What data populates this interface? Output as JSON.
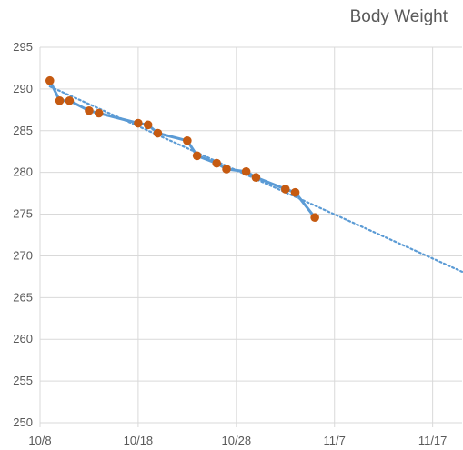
{
  "chart_data": {
    "type": "line",
    "title": "Body Weight",
    "xlabel": "",
    "ylabel": "",
    "x_tick_labels": [
      "10/8",
      "10/18",
      "10/28",
      "11/7",
      "11/17"
    ],
    "y_tick_labels": [
      "250",
      "255",
      "260",
      "265",
      "270",
      "275",
      "280",
      "285",
      "290",
      "295"
    ],
    "xlim": [
      "2024-10-08",
      "2024-11-20"
    ],
    "ylim": [
      250,
      295
    ],
    "grid": true,
    "legend": "none",
    "colors": {
      "line": "#5b9bd5",
      "marker": "#c55a11",
      "trend": "#5b9bd5",
      "grid": "#d9d9d9",
      "text": "#595959"
    },
    "series": [
      {
        "x": [
          "2024-10-09",
          "2024-10-10",
          "2024-10-11",
          "2024-10-13",
          "2024-10-14",
          "2024-10-18",
          "2024-10-19",
          "2024-10-20",
          "2024-10-23",
          "2024-10-24",
          "2024-10-26",
          "2024-10-27",
          "2024-10-29",
          "2024-10-30",
          "2024-11-02",
          "2024-11-03",
          "2024-11-05"
        ],
        "y": [
          291.0,
          288.6,
          288.6,
          287.4,
          287.1,
          285.9,
          285.7,
          284.7,
          283.8,
          282.0,
          281.1,
          280.4,
          280.1,
          279.4,
          278.0,
          277.6,
          274.6
        ]
      }
    ],
    "trendline": {
      "type": "linear",
      "x": [
        "2024-10-09",
        "2024-11-20"
      ],
      "y": [
        290.3,
        268.1
      ]
    }
  }
}
